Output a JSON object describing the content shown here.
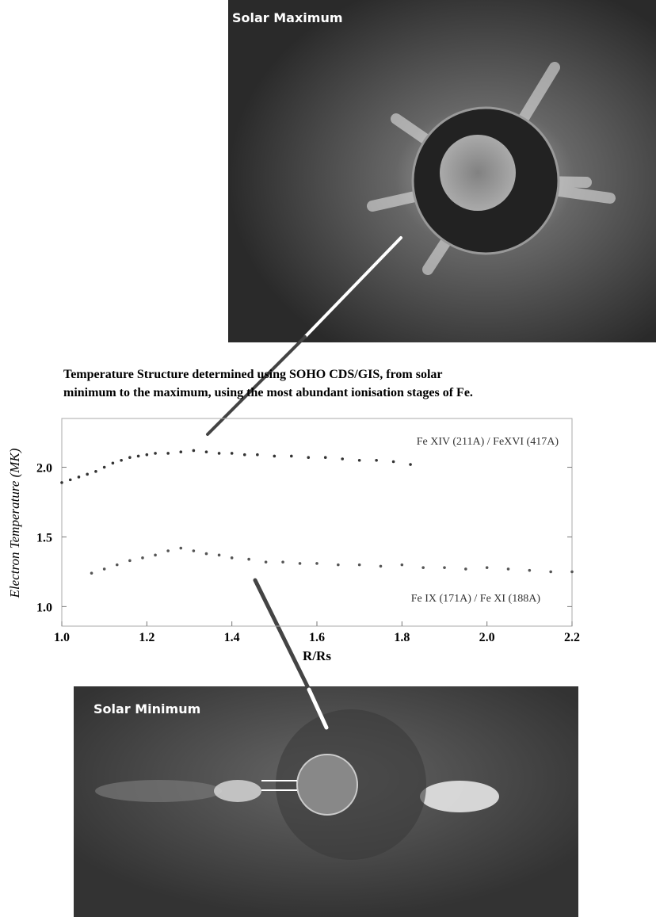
{
  "chart_data": {
    "type": "scatter",
    "title": [
      "Temperature Structure determined using SOHO CDS/GIS, from solar",
      "minimum to the maximum, using the most abundant ionisation stages of Fe."
    ],
    "xlabel": "R/Rs",
    "ylabel": "Electron Temperature (MK)",
    "xlim": [
      1.0,
      2.2
    ],
    "ylim": [
      0.86,
      2.35
    ],
    "xticks": [
      {
        "value": 1.0,
        "label": "1.0"
      },
      1.2,
      1.4,
      1.6,
      1.8,
      {
        "value": 2.0,
        "label": "2.0"
      },
      2.2
    ],
    "yticks": [
      {
        "value": 1.0,
        "label": "1.0"
      },
      1.5,
      {
        "value": 2.0,
        "label": "2.0"
      }
    ],
    "series": [
      {
        "name": "Fe XIV (211A) / FeXVI (417A)",
        "color": "#333333",
        "x": [
          1.0,
          1.02,
          1.04,
          1.06,
          1.08,
          1.1,
          1.12,
          1.14,
          1.16,
          1.18,
          1.2,
          1.22,
          1.25,
          1.28,
          1.31,
          1.34,
          1.37,
          1.4,
          1.43,
          1.46,
          1.5,
          1.54,
          1.58,
          1.62,
          1.66,
          1.7,
          1.74,
          1.78,
          1.82
        ],
        "values": [
          1.89,
          1.91,
          1.93,
          1.95,
          1.97,
          2.0,
          2.03,
          2.05,
          2.07,
          2.08,
          2.09,
          2.1,
          2.1,
          2.11,
          2.12,
          2.11,
          2.1,
          2.1,
          2.09,
          2.09,
          2.08,
          2.08,
          2.07,
          2.07,
          2.06,
          2.05,
          2.05,
          2.04,
          2.02
        ]
      },
      {
        "name": "Fe IX (171A) / Fe XI (188A)",
        "color": "#555555",
        "x": [
          1.07,
          1.1,
          1.13,
          1.16,
          1.19,
          1.22,
          1.25,
          1.28,
          1.31,
          1.34,
          1.37,
          1.4,
          1.44,
          1.48,
          1.52,
          1.56,
          1.6,
          1.65,
          1.7,
          1.75,
          1.8,
          1.85,
          1.9,
          1.95,
          2.0,
          2.05,
          2.1,
          2.15,
          2.2
        ],
        "values": [
          1.24,
          1.27,
          1.3,
          1.33,
          1.35,
          1.37,
          1.4,
          1.42,
          1.4,
          1.38,
          1.37,
          1.35,
          1.34,
          1.32,
          1.32,
          1.31,
          1.31,
          1.3,
          1.3,
          1.29,
          1.3,
          1.28,
          1.28,
          1.27,
          1.28,
          1.27,
          1.26,
          1.25,
          1.25
        ]
      }
    ]
  },
  "images": {
    "top": {
      "label": "Solar Maximum"
    },
    "bottom": {
      "label": "Solar Minimum"
    }
  }
}
